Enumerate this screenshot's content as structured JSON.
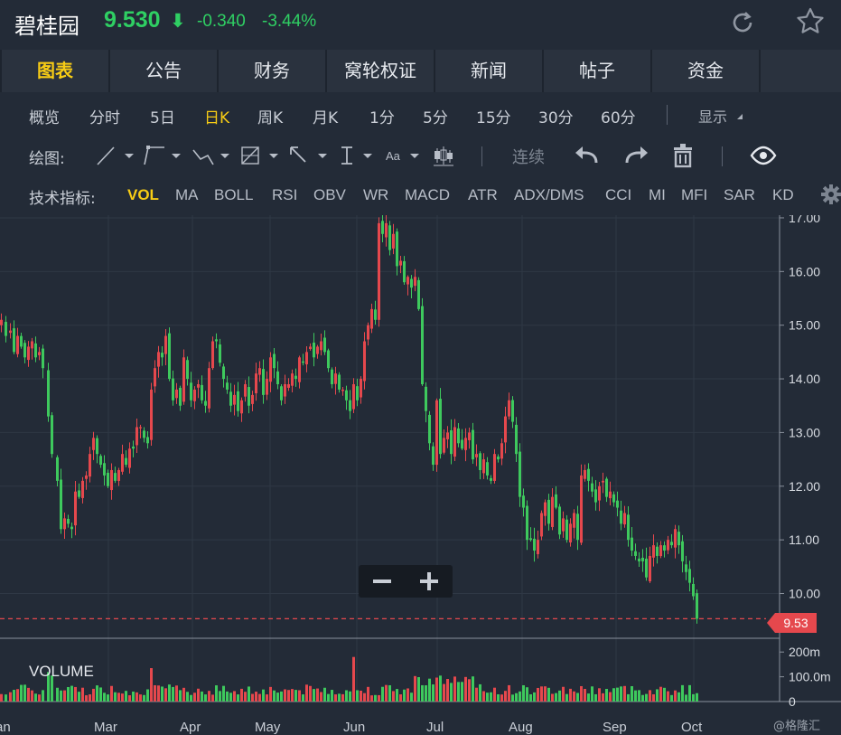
{
  "header": {
    "stock_name": "碧桂园",
    "price": "9.530",
    "price_arrow": "⬇",
    "change": "-0.340",
    "change_pct": "-3.44%",
    "color_down": "#2fcf63",
    "icons": [
      "refresh-icon",
      "star-icon"
    ]
  },
  "tabs": [
    {
      "label": "图表",
      "active": true
    },
    {
      "label": "公告",
      "active": false
    },
    {
      "label": "财务",
      "active": false
    },
    {
      "label": "窝轮权证",
      "active": false
    },
    {
      "label": "新闻",
      "active": false
    },
    {
      "label": "帖子",
      "active": false
    },
    {
      "label": "资金",
      "active": false
    }
  ],
  "periods": {
    "items": [
      "概览",
      "分时",
      "5日",
      "日K",
      "周K",
      "月K",
      "1分",
      "5分",
      "15分",
      "30分",
      "60分"
    ],
    "active": "日K",
    "display_label": "显示"
  },
  "tools": {
    "label": "绘图:",
    "continuous_label": "连续",
    "text_tool_label": "Aa",
    "icons": [
      "line-tool-icon",
      "segment-tool-icon",
      "polyline-tool-icon",
      "fib-tool-icon",
      "arrow-tool-icon",
      "measure-tool-icon",
      "text-tool-icon",
      "candle-tool-icon",
      "undo-icon",
      "redo-icon",
      "trash-icon",
      "eye-icon"
    ]
  },
  "indicators": {
    "label": "技术指标:",
    "items": [
      "VOL",
      "MA",
      "BOLL",
      "RSI",
      "OBV",
      "WR",
      "MACD",
      "ATR",
      "ADX/DMS",
      "CCI",
      "MI",
      "MFI",
      "SAR",
      "KD"
    ],
    "active": "VOL",
    "settings_icon": "gear-icon"
  },
  "chart_data": {
    "type": "candlestick",
    "price_axis": {
      "ticks": [
        "17.00",
        "16.00",
        "15.00",
        "14.00",
        "13.00",
        "12.00",
        "11.00",
        "10.00"
      ],
      "ylim": [
        9.2,
        17.05
      ]
    },
    "volume_axis": {
      "ticks": [
        "200m",
        "100.0m",
        "0"
      ],
      "ylim": [
        0,
        230
      ]
    },
    "x_ticks": [
      "Jan",
      "Mar",
      "Apr",
      "May",
      "Jun",
      "Jul",
      "Aug",
      "Sep",
      "Oct"
    ],
    "x_tick_display": [
      "an",
      "Mar",
      "Apr",
      "May",
      "Jun",
      "Jul",
      "Aug",
      "Sep",
      "Oct"
    ],
    "last_price_label": "9.53",
    "volume_label": "VOLUME",
    "colors": {
      "up": "#e5484d",
      "down": "#3ec95d",
      "bg": "#232b37",
      "grid": "#2f3845",
      "last_line": "#e5484d"
    },
    "approx_closes": [
      [
        0,
        15.1
      ],
      [
        5,
        14.8
      ],
      [
        10,
        14.9
      ],
      [
        14,
        14.5
      ],
      [
        18,
        14.8
      ],
      [
        22,
        14.6
      ],
      [
        26,
        14.4
      ],
      [
        30,
        14.6
      ],
      [
        34,
        14.7
      ],
      [
        38,
        14.4
      ],
      [
        42,
        14.5
      ],
      [
        46,
        14.2
      ],
      [
        52,
        13.3
      ],
      [
        56,
        12.6
      ],
      [
        62,
        12.1
      ],
      [
        66,
        11.2
      ],
      [
        70,
        11.4
      ],
      [
        74,
        11.3
      ],
      [
        78,
        11.2
      ],
      [
        82,
        11.9
      ],
      [
        86,
        11.8
      ],
      [
        90,
        12.1
      ],
      [
        94,
        12.2
      ],
      [
        98,
        12.6
      ],
      [
        102,
        12.9
      ],
      [
        106,
        12.6
      ],
      [
        110,
        12.4
      ],
      [
        114,
        12.2
      ],
      [
        118,
        12.0
      ],
      [
        122,
        12.3
      ],
      [
        126,
        12.1
      ],
      [
        130,
        12.3
      ],
      [
        134,
        12.6
      ],
      [
        138,
        12.4
      ],
      [
        142,
        12.7
      ],
      [
        146,
        12.7
      ],
      [
        150,
        13.1
      ],
      [
        154,
        13.1
      ],
      [
        158,
        12.9
      ],
      [
        162,
        12.8
      ],
      [
        166,
        13.8
      ],
      [
        170,
        14.2
      ],
      [
        174,
        14.5
      ],
      [
        178,
        14.4
      ],
      [
        182,
        14.8
      ],
      [
        186,
        14.0
      ],
      [
        190,
        13.6
      ],
      [
        194,
        13.8
      ],
      [
        198,
        13.5
      ],
      [
        202,
        14.4
      ],
      [
        206,
        14.0
      ],
      [
        210,
        13.6
      ],
      [
        214,
        13.8
      ],
      [
        218,
        13.9
      ],
      [
        222,
        13.6
      ],
      [
        226,
        13.5
      ],
      [
        230,
        14.2
      ],
      [
        234,
        14.7
      ],
      [
        238,
        14.7
      ],
      [
        242,
        14.3
      ],
      [
        246,
        14.0
      ],
      [
        250,
        13.8
      ],
      [
        254,
        13.5
      ],
      [
        258,
        13.7
      ],
      [
        262,
        13.4
      ],
      [
        266,
        13.6
      ],
      [
        270,
        13.9
      ],
      [
        274,
        13.5
      ],
      [
        278,
        13.7
      ],
      [
        282,
        14.1
      ],
      [
        286,
        14.2
      ],
      [
        290,
        13.7
      ],
      [
        294,
        14.0
      ],
      [
        298,
        14.4
      ],
      [
        302,
        14.2
      ],
      [
        306,
        13.9
      ],
      [
        310,
        13.6
      ],
      [
        314,
        13.9
      ],
      [
        318,
        13.9
      ],
      [
        322,
        14.1
      ],
      [
        326,
        14.0
      ],
      [
        330,
        14.4
      ],
      [
        334,
        14.3
      ],
      [
        338,
        14.5
      ],
      [
        342,
        14.6
      ],
      [
        346,
        14.4
      ],
      [
        350,
        14.6
      ],
      [
        354,
        14.7
      ],
      [
        358,
        14.5
      ],
      [
        362,
        14.2
      ],
      [
        366,
        13.9
      ],
      [
        370,
        14.1
      ],
      [
        374,
        13.8
      ],
      [
        378,
        13.8
      ],
      [
        382,
        13.6
      ],
      [
        386,
        13.4
      ],
      [
        390,
        13.9
      ],
      [
        394,
        13.6
      ],
      [
        398,
        14.0
      ],
      [
        402,
        14.7
      ],
      [
        406,
        15.0
      ],
      [
        410,
        15.3
      ],
      [
        414,
        15.1
      ],
      [
        418,
        16.9
      ],
      [
        422,
        16.7
      ],
      [
        426,
        16.9
      ],
      [
        430,
        16.4
      ],
      [
        434,
        16.7
      ],
      [
        438,
        16.1
      ],
      [
        442,
        16.2
      ],
      [
        446,
        15.8
      ],
      [
        450,
        15.9
      ],
      [
        454,
        15.7
      ],
      [
        458,
        15.9
      ],
      [
        462,
        15.3
      ],
      [
        466,
        13.9
      ],
      [
        470,
        13.4
      ],
      [
        474,
        12.8
      ],
      [
        478,
        12.4
      ],
      [
        482,
        13.6
      ],
      [
        486,
        12.6
      ],
      [
        490,
        12.9
      ],
      [
        494,
        13.0
      ],
      [
        498,
        12.6
      ],
      [
        502,
        13.1
      ],
      [
        506,
        12.8
      ],
      [
        510,
        12.7
      ],
      [
        514,
        12.9
      ],
      [
        518,
        13.0
      ],
      [
        522,
        12.5
      ],
      [
        526,
        12.6
      ],
      [
        530,
        12.3
      ],
      [
        534,
        12.5
      ],
      [
        538,
        12.2
      ],
      [
        542,
        12.1
      ],
      [
        546,
        12.6
      ],
      [
        550,
        12.5
      ],
      [
        554,
        12.8
      ],
      [
        558,
        13.3
      ],
      [
        562,
        13.6
      ],
      [
        566,
        13.2
      ],
      [
        570,
        12.6
      ],
      [
        574,
        11.8
      ],
      [
        578,
        11.6
      ],
      [
        582,
        11.0
      ],
      [
        586,
        11.0
      ],
      [
        590,
        10.8
      ],
      [
        594,
        11.0
      ],
      [
        598,
        11.5
      ],
      [
        602,
        11.7
      ],
      [
        606,
        11.3
      ],
      [
        610,
        11.8
      ],
      [
        614,
        11.6
      ],
      [
        618,
        11.1
      ],
      [
        622,
        11.4
      ],
      [
        626,
        11.0
      ],
      [
        630,
        11.3
      ],
      [
        634,
        11.5
      ],
      [
        638,
        11.0
      ],
      [
        642,
        12.2
      ],
      [
        646,
        12.3
      ],
      [
        650,
        12.1
      ],
      [
        654,
        11.9
      ],
      [
        658,
        11.7
      ],
      [
        662,
        12.0
      ],
      [
        666,
        12.1
      ],
      [
        670,
        11.8
      ],
      [
        674,
        11.9
      ],
      [
        678,
        11.7
      ],
      [
        682,
        11.6
      ],
      [
        686,
        11.3
      ],
      [
        690,
        11.5
      ],
      [
        694,
        11.0
      ],
      [
        698,
        10.8
      ],
      [
        702,
        10.7
      ],
      [
        706,
        10.6
      ],
      [
        710,
        10.6
      ],
      [
        714,
        10.3
      ],
      [
        718,
        10.7
      ],
      [
        722,
        10.9
      ],
      [
        726,
        10.7
      ],
      [
        730,
        10.9
      ],
      [
        734,
        10.8
      ],
      [
        738,
        11.0
      ],
      [
        742,
        10.9
      ],
      [
        746,
        11.2
      ],
      [
        750,
        10.9
      ],
      [
        754,
        10.6
      ],
      [
        758,
        10.4
      ],
      [
        762,
        10.2
      ],
      [
        766,
        9.95
      ],
      [
        770,
        9.53
      ]
    ]
  },
  "watermark": "@格隆汇"
}
